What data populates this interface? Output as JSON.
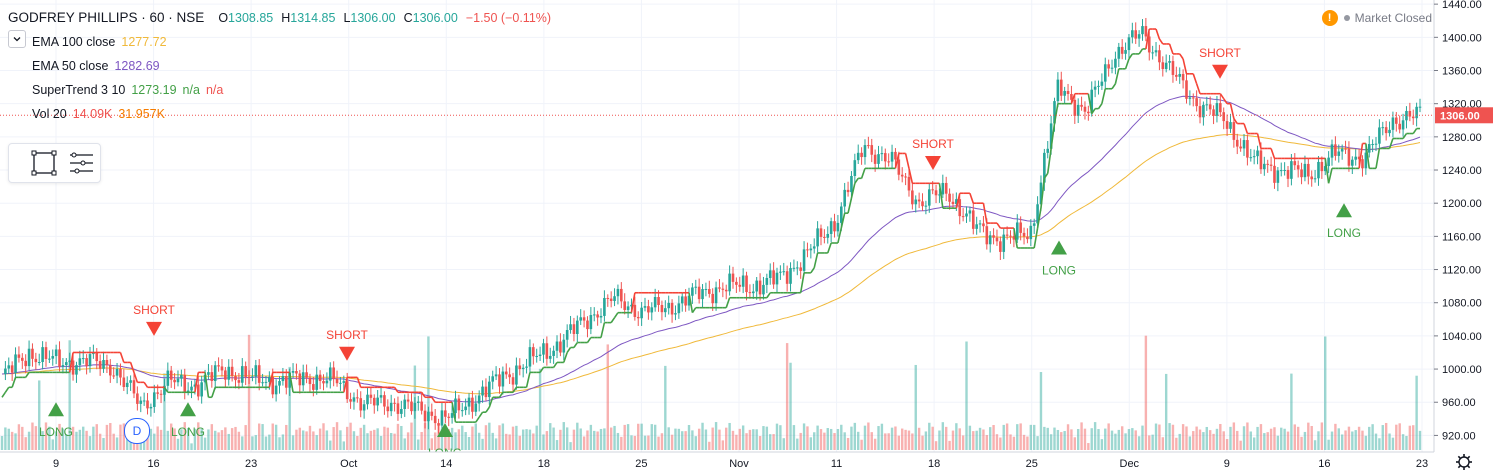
{
  "legend": {
    "title": "GODFREY PHILLIPS · 60 · NSE",
    "open_label": "O",
    "open": "1308.85",
    "high_label": "H",
    "high": "1314.85",
    "low_label": "L",
    "low": "1306.00",
    "close_label": "C",
    "close": "1306.00",
    "change": "−1.50 (−0.11%)",
    "studies": [
      {
        "name": "EMA 100 close",
        "values": [
          "1277.72"
        ],
        "color": "#f0b93a"
      },
      {
        "name": "EMA 50 close",
        "values": [
          "1282.69"
        ],
        "color": "#7e57c2"
      },
      {
        "name": "SuperTrend 3 10",
        "values": [
          "1273.19",
          "n/a",
          "n/a"
        ],
        "color": "#43a047"
      },
      {
        "name": "Vol 20",
        "values": [
          "14.09K",
          "31.957K"
        ],
        "color": "#ef5350"
      }
    ]
  },
  "market_status": "Market Closed",
  "market_icon": "warning-icon",
  "price_label": "1306.00",
  "colors": {
    "up": "#26a69a",
    "down": "#ef5350",
    "ema100": "#f0b93a",
    "ema50": "#7e57c2",
    "st_up": "#43a047",
    "st_down": "#f44336",
    "long": "#43a047",
    "short": "#f44336"
  },
  "x_badge": "D",
  "chart_data": {
    "type": "candlestick",
    "title": "GODFREY PHILLIPS · 60 · NSE",
    "y_axis": {
      "ticks": [
        920,
        960,
        1000,
        1040,
        1080,
        1120,
        1160,
        1200,
        1240,
        1280,
        1320,
        1360,
        1400,
        1440
      ],
      "range": [
        900,
        1445
      ]
    },
    "x_axis": {
      "ticks": [
        "9",
        "16",
        "23",
        "Oct",
        "14",
        "18",
        "25",
        "Nov",
        "11",
        "18",
        "25",
        "Dec",
        "9",
        "16",
        "23"
      ]
    },
    "last_price": 1306.0,
    "close_series": [
      {
        "label": "9",
        "close": 990
      },
      {
        "label": "",
        "close": 1020
      },
      {
        "label": "",
        "close": 1008
      },
      {
        "label": "16",
        "close": 1010
      },
      {
        "label": "",
        "close": 1003
      },
      {
        "label": "",
        "close": 955
      },
      {
        "label": "",
        "close": 985
      },
      {
        "label": "",
        "close": 980
      },
      {
        "label": "23",
        "close": 1000
      },
      {
        "label": "",
        "close": 988
      },
      {
        "label": "",
        "close": 985
      },
      {
        "label": "",
        "close": 990
      },
      {
        "label": "Oct",
        "close": 985
      },
      {
        "label": "",
        "close": 958
      },
      {
        "label": "",
        "close": 960
      },
      {
        "label": "",
        "close": 950
      },
      {
        "label": "",
        "close": 940
      },
      {
        "label": "",
        "close": 965
      },
      {
        "label": "14",
        "close": 990
      },
      {
        "label": "",
        "close": 1010
      },
      {
        "label": "",
        "close": 1030
      },
      {
        "label": "18",
        "close": 1060
      },
      {
        "label": "",
        "close": 1085
      },
      {
        "label": "",
        "close": 1070
      },
      {
        "label": "25",
        "close": 1075
      },
      {
        "label": "",
        "close": 1090
      },
      {
        "label": "",
        "close": 1100
      },
      {
        "label": "Nov",
        "close": 1100
      },
      {
        "label": "",
        "close": 1110
      },
      {
        "label": "",
        "close": 1140
      },
      {
        "label": "11",
        "close": 1180
      },
      {
        "label": "",
        "close": 1270
      },
      {
        "label": "",
        "close": 1250
      },
      {
        "label": "18",
        "close": 1200
      },
      {
        "label": "",
        "close": 1215
      },
      {
        "label": "",
        "close": 1170
      },
      {
        "label": "25",
        "close": 1155
      },
      {
        "label": "",
        "close": 1165
      },
      {
        "label": "",
        "close": 1340
      },
      {
        "label": "",
        "close": 1310
      },
      {
        "label": "Dec",
        "close": 1380
      },
      {
        "label": "",
        "close": 1405
      },
      {
        "label": "",
        "close": 1360
      },
      {
        "label": "9",
        "close": 1320
      },
      {
        "label": "",
        "close": 1300
      },
      {
        "label": "",
        "close": 1250
      },
      {
        "label": "",
        "close": 1240
      },
      {
        "label": "16",
        "close": 1235
      },
      {
        "label": "",
        "close": 1260
      },
      {
        "label": "",
        "close": 1255
      },
      {
        "label": "",
        "close": 1300
      },
      {
        "label": "23",
        "close": 1306
      }
    ],
    "signals": [
      {
        "type": "LONG",
        "x_label": "9",
        "price": 960
      },
      {
        "type": "SHORT",
        "x_label": "16",
        "price": 1040
      },
      {
        "type": "LONG",
        "x_label": "",
        "price": 960
      },
      {
        "type": "SHORT",
        "x_label": "Oct",
        "price": 1010
      },
      {
        "type": "LONG",
        "x_label": "",
        "price": 935
      },
      {
        "type": "SHORT",
        "x_label": "18",
        "price": 1240
      },
      {
        "type": "LONG",
        "x_label": "25",
        "price": 1155
      },
      {
        "type": "SHORT",
        "x_label": "9",
        "price": 1350
      },
      {
        "type": "LONG",
        "x_label": "16",
        "price": 1200
      }
    ],
    "volume_axis_note": "bars at bottom, scaled relative"
  }
}
